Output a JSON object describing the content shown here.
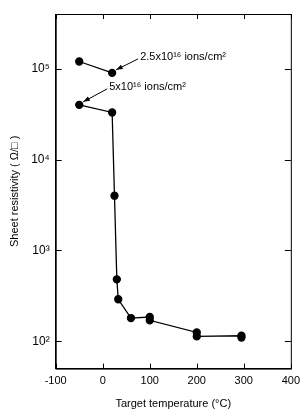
{
  "chart_data": {
    "type": "line",
    "x_label": "Target temperature (°C)",
    "y_label": "Sheet resistivity ( Ω/□ )",
    "log": "y",
    "grid": false,
    "xlim": [
      -100,
      400
    ],
    "xticks": [
      -100,
      0,
      100,
      200,
      300,
      400
    ],
    "ylim": [
      50,
      400000
    ],
    "yticks": [
      {
        "value": 100,
        "label": "10²"
      },
      {
        "value": 1000,
        "label": "10³"
      },
      {
        "value": 10000,
        "label": "10⁴"
      },
      {
        "value": 100000,
        "label": "10⁵"
      }
    ],
    "series": [
      {
        "color": "#000000",
        "marker": "circle",
        "line_style": "solid",
        "x": [
          -50,
          20
        ],
        "values": [
          120000,
          90000
        ]
      },
      {
        "color": "#000000",
        "marker": "circle",
        "line_style": "solid",
        "x": [
          -50,
          20,
          25,
          30,
          33,
          60,
          100,
          100,
          200,
          200,
          295,
          295
        ],
        "values": [
          40000,
          33000,
          4000,
          480,
          290,
          180,
          185,
          170,
          125,
          113,
          115,
          110
        ]
      }
    ],
    "annotations": [
      {
        "text": "2.5x10¹⁶ ions/cm²",
        "x": 20,
        "y": 90000
      },
      {
        "text": "5x10¹⁶ ions/cm²",
        "x": -50,
        "y": 40000
      }
    ]
  }
}
